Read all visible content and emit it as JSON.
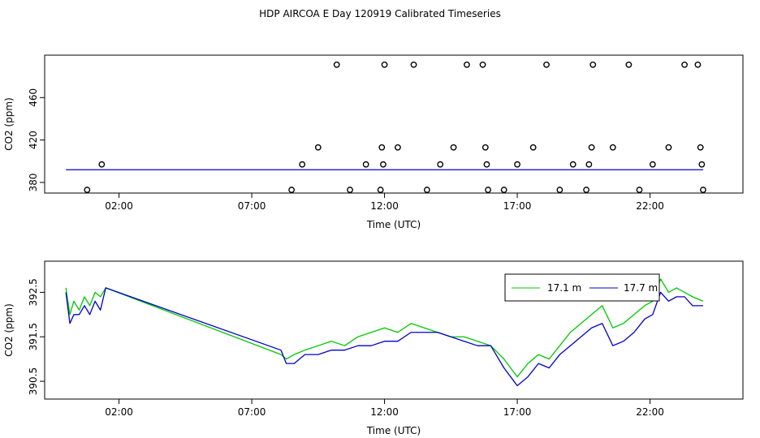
{
  "title": "HDP AIRCOA E  Day 120919  Calibrated Timeseries",
  "colors": {
    "green": "#00c800",
    "blue": "#0000cc",
    "frame": "#000000"
  },
  "chart_data": [
    {
      "type": "scatter",
      "xlabel": "Time (UTC)",
      "ylabel": "CO2 (ppm)",
      "xlim": [
        -0.8,
        25.5
      ],
      "ylim": [
        370,
        500
      ],
      "xticks": [
        2,
        7,
        12,
        17,
        22
      ],
      "xtick_labels": [
        "02:00",
        "07:00",
        "12:00",
        "17:00",
        "22:00"
      ],
      "yticks": [
        380,
        420,
        460
      ],
      "ytick_labels": [
        "380",
        "420",
        "460"
      ],
      "points_x": [
        0.8,
        1.35,
        8.5,
        8.9,
        9.5,
        10.2,
        10.7,
        11.3,
        11.85,
        11.95,
        11.9,
        12.0,
        12.5,
        13.1,
        13.6,
        14.1,
        14.6,
        15.1,
        15.7,
        15.8,
        15.85,
        15.9,
        16.5,
        17.0,
        17.6,
        18.1,
        18.6,
        19.1,
        19.6,
        19.7,
        19.8,
        19.85,
        20.6,
        21.2,
        21.6,
        22.1,
        22.7,
        23.3,
        23.8,
        23.9,
        23.95,
        24.0
      ],
      "points_y": [
        373,
        397,
        373,
        397,
        413,
        491,
        373,
        397,
        373,
        397,
        413,
        491,
        413,
        491,
        373,
        397,
        413,
        491,
        491,
        413,
        397,
        373,
        373,
        397,
        413,
        491,
        373,
        397,
        373,
        397,
        413,
        491,
        413,
        491,
        373,
        397,
        413,
        491,
        491,
        413,
        397,
        373
      ],
      "line_x": [
        0,
        24
      ],
      "line_y": [
        392,
        392
      ]
    },
    {
      "type": "line",
      "xlabel": "Time (UTC)",
      "ylabel": "CO2 (ppm)",
      "xlim": [
        -0.8,
        25.5
      ],
      "ylim": [
        390.1,
        393.2
      ],
      "xticks": [
        2,
        7,
        12,
        17,
        22
      ],
      "xtick_labels": [
        "02:00",
        "07:00",
        "12:00",
        "17:00",
        "22:00"
      ],
      "yticks": [
        390.5,
        391.5,
        392.5
      ],
      "ytick_labels": [
        "390.5",
        "391.5",
        "392.5"
      ],
      "legend_position": "top-right",
      "x": [
        0.0,
        0.15,
        0.3,
        0.5,
        0.7,
        0.9,
        1.1,
        1.3,
        1.5,
        8.1,
        8.3,
        8.6,
        9.0,
        9.5,
        10.0,
        10.5,
        11.0,
        11.5,
        12.0,
        12.5,
        13.0,
        13.5,
        14.0,
        14.5,
        15.0,
        15.5,
        16.0,
        16.5,
        17.0,
        17.4,
        17.8,
        18.2,
        18.6,
        19.0,
        19.4,
        19.8,
        20.2,
        20.6,
        21.0,
        21.4,
        21.8,
        22.1,
        22.4,
        22.7,
        23.0,
        23.3,
        23.6,
        24.0
      ],
      "series": [
        {
          "name": "17.1 m",
          "values": [
            392.6,
            392.0,
            392.3,
            392.1,
            392.4,
            392.2,
            392.5,
            392.4,
            392.6,
            391.1,
            391.0,
            391.1,
            391.2,
            391.3,
            391.4,
            391.3,
            391.5,
            391.6,
            391.7,
            391.6,
            391.8,
            391.7,
            391.6,
            391.5,
            391.5,
            391.4,
            391.3,
            391.0,
            390.6,
            390.9,
            391.1,
            391.0,
            391.3,
            391.6,
            391.8,
            392.0,
            392.2,
            391.7,
            391.8,
            392.0,
            392.2,
            392.3,
            392.8,
            392.5,
            392.6,
            392.5,
            392.4,
            392.3
          ]
        },
        {
          "name": "17.7 m",
          "values": [
            392.5,
            391.8,
            392.0,
            392.0,
            392.2,
            392.0,
            392.3,
            392.1,
            392.6,
            391.2,
            390.9,
            390.9,
            391.1,
            391.1,
            391.2,
            391.2,
            391.3,
            391.3,
            391.4,
            391.4,
            391.6,
            391.6,
            391.6,
            391.5,
            391.4,
            391.3,
            391.3,
            390.8,
            390.4,
            390.6,
            390.9,
            390.8,
            391.1,
            391.3,
            391.5,
            391.7,
            391.8,
            391.3,
            391.4,
            391.6,
            391.9,
            392.0,
            392.5,
            392.3,
            392.4,
            392.4,
            392.2,
            392.2
          ]
        }
      ]
    }
  ]
}
